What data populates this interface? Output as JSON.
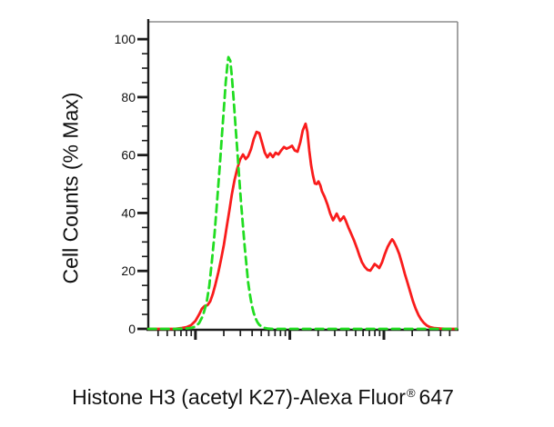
{
  "figure": {
    "background": "#ffffff",
    "border_color": "#8e8e8e",
    "axis_color": "#1c1c1c",
    "text_color": "#111111"
  },
  "y_axis": {
    "label": "Cell Counts (% Max)"
  },
  "x_axis": {
    "label_prefix": "Histone H3 (acetyl K27)-Alexa Fluor",
    "label_sup": "®",
    "label_suffix": "647"
  },
  "chart_data": {
    "type": "line",
    "subtype": "flow-cytometry-histogram-overlay",
    "title": "",
    "xlabel": "Histone H3 (acetyl K27)-Alexa Fluor® 647",
    "ylabel": "Cell Counts (% Max)",
    "ylim": [
      0,
      106
    ],
    "yticks": [
      0,
      20,
      40,
      60,
      80,
      100
    ],
    "y_minor_step": 5,
    "x_scale": "log",
    "x_tick_labels_visible": false,
    "x_decade_fractions": [
      -0.152,
      0.153,
      0.459,
      0.764
    ],
    "x_decade_spacing": 0.3053,
    "grid": false,
    "legend": false,
    "series": [
      {
        "id": "red-solid",
        "name": "red solid curve",
        "color": "#f91c1c",
        "dashed": false,
        "x_units": "axis fraction (log fluorescence intensity)",
        "y_units": "% of max",
        "points": [
          [
            0,
            0
          ],
          [
            0.086,
            0
          ],
          [
            0.109,
            0.3
          ],
          [
            0.124,
            0.6
          ],
          [
            0.139,
            1.3
          ],
          [
            0.153,
            2.8
          ],
          [
            0.165,
            5
          ],
          [
            0.174,
            7
          ],
          [
            0.183,
            7.9
          ],
          [
            0.192,
            8.2
          ],
          [
            0.201,
            9.5
          ],
          [
            0.209,
            12
          ],
          [
            0.218,
            15.5
          ],
          [
            0.227,
            19.5
          ],
          [
            0.236,
            24
          ],
          [
            0.245,
            29
          ],
          [
            0.254,
            35
          ],
          [
            0.263,
            41
          ],
          [
            0.271,
            46.5
          ],
          [
            0.28,
            51.5
          ],
          [
            0.289,
            55.5
          ],
          [
            0.298,
            58.5
          ],
          [
            0.307,
            60.2
          ],
          [
            0.316,
            58.6
          ],
          [
            0.324,
            59.6
          ],
          [
            0.333,
            62
          ],
          [
            0.342,
            65.5
          ],
          [
            0.351,
            68
          ],
          [
            0.36,
            67.6
          ],
          [
            0.369,
            64.2
          ],
          [
            0.378,
            60.8
          ],
          [
            0.386,
            59.2
          ],
          [
            0.395,
            60.6
          ],
          [
            0.404,
            59.3
          ],
          [
            0.413,
            60.8
          ],
          [
            0.422,
            60.2
          ],
          [
            0.431,
            61.6
          ],
          [
            0.44,
            62.8
          ],
          [
            0.448,
            62.2
          ],
          [
            0.457,
            62.6
          ],
          [
            0.466,
            63.2
          ],
          [
            0.475,
            61.6
          ],
          [
            0.484,
            61.2
          ],
          [
            0.493,
            64.4
          ],
          [
            0.501,
            68.5
          ],
          [
            0.51,
            70.8
          ],
          [
            0.516,
            68
          ],
          [
            0.522,
            61.5
          ],
          [
            0.528,
            56.5
          ],
          [
            0.534,
            53
          ],
          [
            0.54,
            50.2
          ],
          [
            0.546,
            50
          ],
          [
            0.552,
            50.9
          ],
          [
            0.558,
            49.5
          ],
          [
            0.563,
            47.5
          ],
          [
            0.572,
            45.5
          ],
          [
            0.581,
            42.9
          ],
          [
            0.59,
            39.8
          ],
          [
            0.599,
            37.5
          ],
          [
            0.605,
            38.6
          ],
          [
            0.611,
            39.8
          ],
          [
            0.617,
            38.4
          ],
          [
            0.622,
            37.3
          ],
          [
            0.628,
            38
          ],
          [
            0.634,
            38.8
          ],
          [
            0.64,
            37.4
          ],
          [
            0.649,
            35
          ],
          [
            0.658,
            32.8
          ],
          [
            0.667,
            30.6
          ],
          [
            0.676,
            28
          ],
          [
            0.684,
            25.5
          ],
          [
            0.693,
            23
          ],
          [
            0.702,
            21.4
          ],
          [
            0.711,
            20.4
          ],
          [
            0.72,
            20.1
          ],
          [
            0.729,
            21.5
          ],
          [
            0.734,
            22.4
          ],
          [
            0.74,
            21.9
          ],
          [
            0.749,
            21
          ],
          [
            0.758,
            23
          ],
          [
            0.767,
            25.8
          ],
          [
            0.776,
            28.3
          ],
          [
            0.785,
            30
          ],
          [
            0.791,
            30.9
          ],
          [
            0.796,
            30.2
          ],
          [
            0.805,
            28.2
          ],
          [
            0.814,
            25.8
          ],
          [
            0.823,
            22.5
          ],
          [
            0.832,
            19
          ],
          [
            0.841,
            15.8
          ],
          [
            0.85,
            12.6
          ],
          [
            0.858,
            9.6
          ],
          [
            0.867,
            7
          ],
          [
            0.876,
            4.8
          ],
          [
            0.885,
            3.2
          ],
          [
            0.894,
            2
          ],
          [
            0.903,
            1.2
          ],
          [
            0.914,
            0.6
          ],
          [
            0.929,
            0.25
          ],
          [
            0.947,
            0.1
          ],
          [
            0.965,
            0
          ],
          [
            1,
            0
          ]
        ]
      },
      {
        "id": "green-dashed",
        "name": "green dashed curve",
        "color": "#21dd21",
        "dashed": true,
        "x_units": "axis fraction (log fluorescence intensity)",
        "y_units": "% of max",
        "points": [
          [
            0,
            0
          ],
          [
            0.086,
            0
          ],
          [
            0.109,
            0.1
          ],
          [
            0.127,
            0.2
          ],
          [
            0.142,
            0.4
          ],
          [
            0.153,
            0.8
          ],
          [
            0.165,
            2
          ],
          [
            0.177,
            4.5
          ],
          [
            0.189,
            9
          ],
          [
            0.198,
            15
          ],
          [
            0.206,
            23
          ],
          [
            0.215,
            33
          ],
          [
            0.224,
            45
          ],
          [
            0.233,
            58
          ],
          [
            0.239,
            67
          ],
          [
            0.245,
            76
          ],
          [
            0.251,
            85
          ],
          [
            0.257,
            91.5
          ],
          [
            0.26,
            93.8
          ],
          [
            0.266,
            92.5
          ],
          [
            0.271,
            87
          ],
          [
            0.277,
            79
          ],
          [
            0.283,
            70
          ],
          [
            0.289,
            61
          ],
          [
            0.295,
            52
          ],
          [
            0.301,
            43.5
          ],
          [
            0.307,
            35.5
          ],
          [
            0.313,
            28
          ],
          [
            0.319,
            21.5
          ],
          [
            0.324,
            16
          ],
          [
            0.33,
            11.5
          ],
          [
            0.336,
            8
          ],
          [
            0.342,
            5.5
          ],
          [
            0.348,
            3.6
          ],
          [
            0.354,
            2.3
          ],
          [
            0.36,
            1.4
          ],
          [
            0.369,
            0.7
          ],
          [
            0.378,
            0.3
          ],
          [
            0.389,
            0.1
          ],
          [
            0.404,
            0
          ],
          [
            1,
            0
          ]
        ]
      }
    ]
  }
}
